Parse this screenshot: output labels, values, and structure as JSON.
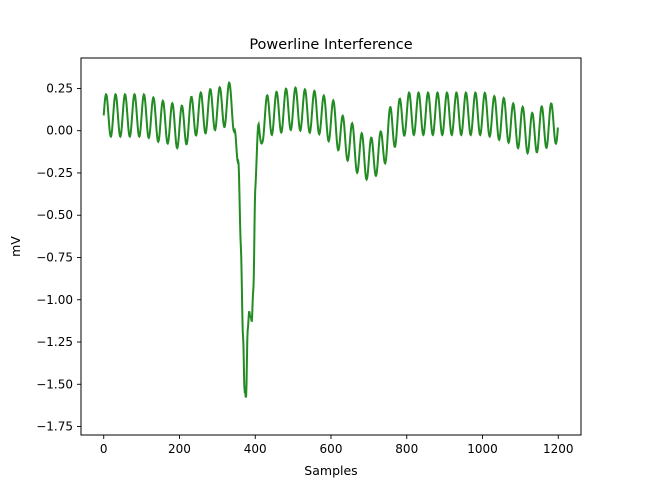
{
  "chart_data": {
    "type": "line",
    "title": "Powerline Interference",
    "xlabel": "Samples",
    "ylabel": "mV",
    "xlim": [
      -60,
      1260
    ],
    "ylim": [
      -1.8,
      0.43
    ],
    "grid": false,
    "legend": "none",
    "x_ticks": [
      {
        "value": 0,
        "label": "0"
      },
      {
        "value": 200,
        "label": "200"
      },
      {
        "value": 400,
        "label": "400"
      },
      {
        "value": 600,
        "label": "600"
      },
      {
        "value": 800,
        "label": "800"
      },
      {
        "value": 1000,
        "label": "1000"
      },
      {
        "value": 1200,
        "label": "1200"
      }
    ],
    "y_ticks": [
      {
        "value": 0.25,
        "label": "0.25"
      },
      {
        "value": 0.0,
        "label": "0.00"
      },
      {
        "value": -0.25,
        "label": "−0.25"
      },
      {
        "value": -0.5,
        "label": "−0.50"
      },
      {
        "value": -0.75,
        "label": "−0.75"
      },
      {
        "value": -1.0,
        "label": "−1.00"
      },
      {
        "value": -1.25,
        "label": "−1.25"
      },
      {
        "value": -1.5,
        "label": "−1.50"
      },
      {
        "value": -1.75,
        "label": "−1.75"
      }
    ],
    "series": [
      {
        "color": "#228b22",
        "sample_count": 1200,
        "interference_period": 25,
        "interference_amplitude": 0.125,
        "baseline_anchors": {
          "x": [
            0,
            100,
            165,
            200,
            250,
            300,
            335,
            345,
            355,
            362,
            368,
            372,
            376,
            380,
            385,
            390,
            395,
            400,
            410,
            420,
            440,
            500,
            560,
            600,
            640,
            680,
            700,
            730,
            760,
            800,
            900,
            1000,
            1050,
            1100,
            1130,
            1160,
            1200
          ],
          "y": [
            0.09,
            0.09,
            0.05,
            0.02,
            0.1,
            0.13,
            0.16,
            0.12,
            -0.3,
            -0.7,
            -1.1,
            -1.45,
            -1.6,
            -1.3,
            -1.15,
            -1.05,
            -0.82,
            -0.35,
            -0.05,
            0.06,
            0.1,
            0.13,
            0.11,
            0.06,
            -0.05,
            -0.14,
            -0.17,
            -0.13,
            0.02,
            0.1,
            0.1,
            0.1,
            0.07,
            0.02,
            -0.02,
            0.02,
            0.05
          ]
        }
      }
    ]
  }
}
